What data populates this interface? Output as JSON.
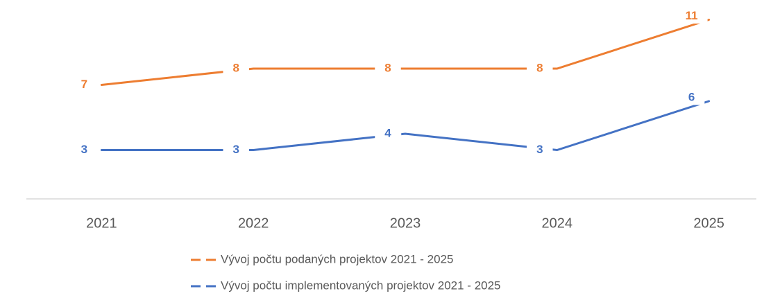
{
  "chart_data": {
    "type": "line",
    "categories": [
      "2021",
      "2022",
      "2023",
      "2024",
      "2025"
    ],
    "series": [
      {
        "name": "Vývoj počtu podaných projektov 2021 - 2025",
        "color": "#ED7D31",
        "values": [
          7,
          8,
          8,
          8,
          11
        ]
      },
      {
        "name": "Vývoj počtu implementovaných projektov 2021 - 2025",
        "color": "#4472C4",
        "values": [
          3,
          3,
          4,
          3,
          6
        ]
      }
    ],
    "ylim": [
      0,
      12
    ],
    "legend": "bottom"
  }
}
